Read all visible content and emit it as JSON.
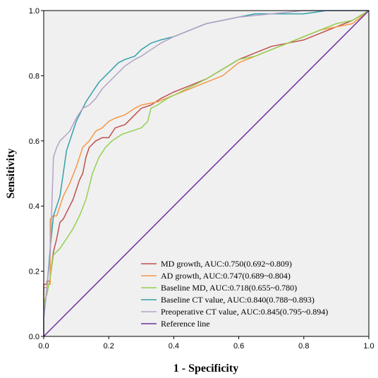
{
  "chart_data": {
    "type": "line",
    "xlabel": "1 - Specificity",
    "ylabel": "Sensitivity",
    "xlim": [
      0,
      1
    ],
    "ylim": [
      0,
      1
    ],
    "xticks": [
      "0.0",
      "0.2",
      "0.4",
      "0.6",
      "0.8",
      "1.0"
    ],
    "yticks": [
      "0.0",
      "0.2",
      "0.4",
      "0.6",
      "0.8",
      "1.0"
    ],
    "grid": false,
    "background_color": "#f0f0f0",
    "legend_position": "bottom-right",
    "series": [
      {
        "name": "MD growth, AUC:0.750(0.692~0.809)",
        "color": "#c0504d",
        "x": [
          0,
          0,
          0.01,
          0.01,
          0.02,
          0.02,
          0.03,
          0.04,
          0.05,
          0.06,
          0.07,
          0.09,
          0.1,
          0.11,
          0.12,
          0.13,
          0.14,
          0.16,
          0.18,
          0.2,
          0.22,
          0.25,
          0.28,
          0.3,
          0.33,
          0.36,
          0.4,
          0.45,
          0.5,
          0.55,
          0.6,
          0.65,
          0.7,
          0.75,
          0.8,
          0.85,
          0.9,
          0.95,
          1.0
        ],
        "y": [
          0,
          0.16,
          0.16,
          0.17,
          0.17,
          0.18,
          0.26,
          0.3,
          0.35,
          0.36,
          0.38,
          0.42,
          0.45,
          0.48,
          0.5,
          0.55,
          0.58,
          0.6,
          0.61,
          0.61,
          0.64,
          0.65,
          0.68,
          0.7,
          0.71,
          0.73,
          0.75,
          0.77,
          0.79,
          0.82,
          0.85,
          0.87,
          0.89,
          0.9,
          0.91,
          0.93,
          0.95,
          0.97,
          1.0
        ]
      },
      {
        "name": "AD growth, AUC:0.747(0.689~0.804)",
        "color": "#f79646",
        "x": [
          0,
          0,
          0.01,
          0.01,
          0.02,
          0.02,
          0.03,
          0.04,
          0.05,
          0.06,
          0.08,
          0.1,
          0.12,
          0.14,
          0.16,
          0.18,
          0.2,
          0.22,
          0.25,
          0.28,
          0.3,
          0.35,
          0.4,
          0.45,
          0.5,
          0.55,
          0.6,
          0.65,
          0.7,
          0.75,
          0.8,
          0.85,
          0.9,
          0.95,
          1.0
        ],
        "y": [
          0,
          0.15,
          0.15,
          0.16,
          0.16,
          0.36,
          0.37,
          0.37,
          0.4,
          0.43,
          0.47,
          0.52,
          0.58,
          0.6,
          0.63,
          0.64,
          0.66,
          0.67,
          0.68,
          0.7,
          0.71,
          0.72,
          0.74,
          0.76,
          0.78,
          0.8,
          0.84,
          0.86,
          0.88,
          0.9,
          0.92,
          0.94,
          0.95,
          0.96,
          1.0
        ]
      },
      {
        "name": "Baseline MD, AUC:0.718(0.655~0.780)",
        "color": "#92d050",
        "x": [
          0,
          0,
          0.01,
          0.02,
          0.03,
          0.05,
          0.07,
          0.09,
          0.11,
          0.13,
          0.15,
          0.17,
          0.19,
          0.21,
          0.24,
          0.27,
          0.3,
          0.32,
          0.33,
          0.35,
          0.38,
          0.42,
          0.46,
          0.5,
          0.55,
          0.6,
          0.65,
          0.7,
          0.75,
          0.8,
          0.85,
          0.9,
          0.95,
          1.0
        ],
        "y": [
          0,
          0.1,
          0.13,
          0.18,
          0.25,
          0.27,
          0.3,
          0.33,
          0.37,
          0.42,
          0.5,
          0.55,
          0.58,
          0.6,
          0.62,
          0.63,
          0.64,
          0.66,
          0.7,
          0.71,
          0.73,
          0.75,
          0.77,
          0.79,
          0.82,
          0.85,
          0.86,
          0.88,
          0.9,
          0.92,
          0.94,
          0.96,
          0.97,
          1.0
        ]
      },
      {
        "name": "Baseline CT value, AUC:0.840(0.788~0.893)",
        "color": "#31a0a8",
        "x": [
          0,
          0,
          0.01,
          0.02,
          0.03,
          0.04,
          0.05,
          0.06,
          0.07,
          0.08,
          0.09,
          0.1,
          0.12,
          0.13,
          0.15,
          0.17,
          0.19,
          0.21,
          0.23,
          0.25,
          0.28,
          0.3,
          0.33,
          0.36,
          0.4,
          0.45,
          0.5,
          0.55,
          0.6,
          0.65,
          0.7,
          0.8,
          0.87,
          0.9,
          1.0
        ],
        "y": [
          0,
          0.06,
          0.15,
          0.27,
          0.37,
          0.4,
          0.43,
          0.5,
          0.57,
          0.6,
          0.63,
          0.66,
          0.7,
          0.72,
          0.75,
          0.78,
          0.8,
          0.82,
          0.84,
          0.85,
          0.86,
          0.88,
          0.9,
          0.91,
          0.92,
          0.94,
          0.96,
          0.97,
          0.98,
          0.99,
          0.99,
          0.99,
          1.0,
          1.0,
          1.0
        ]
      },
      {
        "name": "Preoperative CT value, AUC:0.845(0.795~0.894)",
        "color": "#b3a2c7",
        "x": [
          0,
          0,
          0.01,
          0.02,
          0.03,
          0.04,
          0.05,
          0.06,
          0.07,
          0.08,
          0.09,
          0.1,
          0.12,
          0.14,
          0.16,
          0.18,
          0.2,
          0.22,
          0.25,
          0.28,
          0.3,
          0.33,
          0.36,
          0.4,
          0.45,
          0.5,
          0.55,
          0.6,
          0.7,
          0.8,
          0.9,
          1.0
        ],
        "y": [
          0,
          0.05,
          0.15,
          0.25,
          0.55,
          0.58,
          0.6,
          0.61,
          0.62,
          0.63,
          0.65,
          0.67,
          0.7,
          0.71,
          0.73,
          0.76,
          0.78,
          0.8,
          0.83,
          0.85,
          0.86,
          0.88,
          0.9,
          0.92,
          0.94,
          0.96,
          0.97,
          0.98,
          0.99,
          1.0,
          1.0,
          1.0
        ]
      },
      {
        "name": "Reference line",
        "color": "#7030a0",
        "x": [
          0,
          1
        ],
        "y": [
          0,
          1
        ]
      }
    ]
  }
}
